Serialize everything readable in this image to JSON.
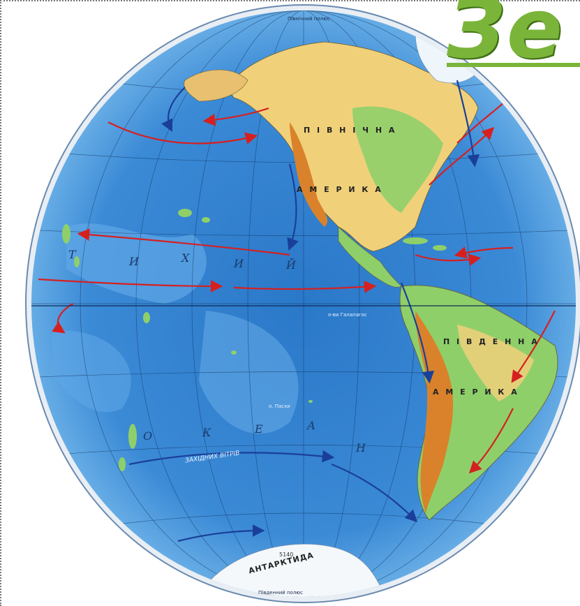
{
  "title": "Зе",
  "continents": {
    "north_america_1": "П І В Н І Ч Н А",
    "north_america_2": "А М Е Р И К А",
    "south_america_1": "П І В Д Е Н Н А",
    "south_america_2": "А М Е Р И К А",
    "antarctica": "АНТАРКТИДА"
  },
  "ocean_letters": [
    "Т",
    "И",
    "Х",
    "И",
    "Й",
    "О",
    "К",
    "Е",
    "А",
    "Н"
  ],
  "labels": {
    "north_pole": "Північний полюс",
    "south_pole": "Південний полюс",
    "westerlies": "ЗАХІДНИХ ВІТРІВ",
    "pacific_island": "о. Пасхи",
    "galapagos": "о-ви Галапагос",
    "depth": "5140"
  },
  "colors": {
    "ocean_deep": "#1f6fc0",
    "ocean_mid": "#4a9be0",
    "ocean_shallow": "#8cc6ef",
    "land_low": "#8fcf6a",
    "land_mid": "#f1d07a",
    "land_high": "#d9822b",
    "warm_current": "#d62020",
    "cold_current": "#1a3f9a",
    "title": "#7ab53a"
  }
}
